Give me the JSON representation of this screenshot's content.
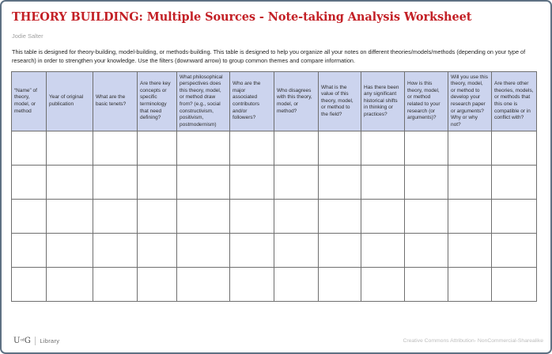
{
  "page": {
    "title": "THEORY BUILDING: Multiple Sources - Note-taking Analysis Worksheet",
    "author": "Jodie Salter",
    "description": "This table is designed for theory-building, model-building, or methods-building. This table is designed to help you organize all your notes on different theories/models/methods (depending on your type of research) in order to strengthen your knowledge. Use the filters (downward arrow) to group common themes and compare information."
  },
  "table": {
    "columns": [
      "“Name” of theory, model, or method",
      "Year of original publication",
      "What are the basic tenets?",
      "Are there key concepts or specific terminology that need defining?",
      "What philosophical perspectives does this theory, model, or method draw from? (e.g., social constructivism, positivism, postmodernism)",
      "Who are the major associated contributors and/or followers?",
      "Who disagrees with this theory, model, or method?",
      "What is the value of this theory, model, or method to the field?",
      "Has there been any significant historical shifts in thinking or practices?",
      "How is this theory, model, or method related to your research (or arguments)?",
      "Will you use this theory, model, or method to develop your research paper or arguments? Why or why not?",
      "Are there other theories, models, or methods that this one is compatible or in conflict with?"
    ],
    "empty_row_count": 5
  },
  "footer": {
    "logo": {
      "u": "U",
      "of": "of",
      "g": "G",
      "unit": "Library"
    },
    "license": "Creative Commons Attribution- NonCommercial-Sharealike"
  },
  "colors": {
    "title_red": "#c32026",
    "header_bg": "#ccd4ee",
    "frame_border": "#5e7183"
  }
}
